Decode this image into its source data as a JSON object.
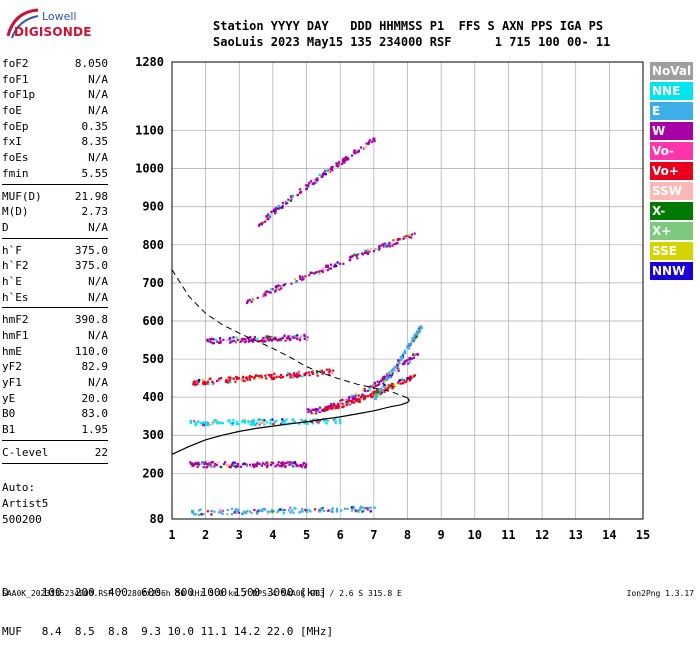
{
  "logo": {
    "line1": "Lowell",
    "line2": "DIGISONDE"
  },
  "header": {
    "line1": "Station YYYY DAY   DDD HHMMSS P1  FFS S AXN PPS IGA PS",
    "line2": "SaoLuis 2023 May15 135 234000 RSF      1 715 100 00- 11"
  },
  "params": {
    "group1": [
      {
        "k": "foF2",
        "v": "8.050"
      },
      {
        "k": "foF1",
        "v": "N/A"
      },
      {
        "k": "foF1p",
        "v": "N/A"
      },
      {
        "k": "foE",
        "v": "N/A"
      },
      {
        "k": "foEp",
        "v": "0.35"
      },
      {
        "k": "fxI",
        "v": "8.35"
      },
      {
        "k": "foEs",
        "v": "N/A"
      },
      {
        "k": "fmin",
        "v": "5.55"
      }
    ],
    "group2": [
      {
        "k": "MUF(D)",
        "v": "21.98"
      },
      {
        "k": "M(D)",
        "v": "2.73"
      },
      {
        "k": "D",
        "v": "N/A"
      }
    ],
    "group3": [
      {
        "k": "h`F",
        "v": "375.0"
      },
      {
        "k": "h`F2",
        "v": "375.0"
      },
      {
        "k": "h`E",
        "v": "N/A"
      },
      {
        "k": "h`Es",
        "v": "N/A"
      }
    ],
    "group4": [
      {
        "k": "hmF2",
        "v": "390.8"
      },
      {
        "k": "hmF1",
        "v": "N/A"
      },
      {
        "k": "hmE",
        "v": "110.0"
      },
      {
        "k": "yF2",
        "v": "82.9"
      },
      {
        "k": "yF1",
        "v": "N/A"
      },
      {
        "k": "yE",
        "v": "20.0"
      },
      {
        "k": "B0",
        "v": "83.0"
      },
      {
        "k": "B1",
        "v": "1.95"
      }
    ],
    "group5": [
      {
        "k": "C-level",
        "v": "22"
      }
    ]
  },
  "auto": {
    "line1": "Auto:",
    "line2": "Artist5",
    "line3": "500200"
  },
  "muf_table": {
    "d_line": "D     100  200  400  600  800 1000 1500 3000 [km]",
    "muf_line": "MUF   8.4  8.5  8.8  9.3 10.0 11.1 14.2 22.0 [MHz]"
  },
  "footer": {
    "left": "SAA0K_2023135234000.RSF / 280fx256h 50 kHz 5.0 km / DPS-4 SAA0K 903 / 2.6 S 315.8 E",
    "right": "Ion2Png 1.3.17"
  },
  "legend": [
    {
      "label": "NoVal",
      "color": "#9e9e9e"
    },
    {
      "label": "NNE",
      "color": "#00e5ee"
    },
    {
      "label": "E",
      "color": "#3daee9"
    },
    {
      "label": "W",
      "color": "#a700a7"
    },
    {
      "label": "Vo-",
      "color": "#ff33aa"
    },
    {
      "label": "Vo+",
      "color": "#e8001c"
    },
    {
      "label": "SSW",
      "color": "#ffb6b6"
    },
    {
      "label": "X-",
      "color": "#007a00"
    },
    {
      "label": "X+",
      "color": "#7dc97d"
    },
    {
      "label": "SSE",
      "color": "#d4d400"
    },
    {
      "label": "NNW",
      "color": "#1a00d6"
    }
  ],
  "chart_data": {
    "type": "scatter",
    "xlim": [
      1,
      15
    ],
    "ylim": [
      80,
      1280
    ],
    "x_ticks": [
      1,
      2,
      3,
      4,
      5,
      6,
      7,
      8,
      9,
      10,
      11,
      12,
      13,
      14,
      15
    ],
    "y_ticks": [
      80,
      200,
      300,
      400,
      500,
      600,
      700,
      800,
      900,
      1000,
      1100,
      1280
    ],
    "grid": true,
    "profile_line": {
      "x": [
        1.0,
        1.5,
        2.0,
        2.5,
        3.0,
        3.5,
        4.0,
        4.5,
        5.0,
        5.5,
        6.0,
        6.5,
        7.0,
        7.5,
        7.8,
        8.0,
        8.05,
        8.0
      ],
      "y": [
        250,
        270,
        288,
        300,
        310,
        318,
        324,
        330,
        335,
        342,
        348,
        356,
        364,
        375,
        380,
        386,
        392,
        398
      ]
    },
    "dashed_line": {
      "x": [
        1.0,
        1.5,
        2.0,
        2.5,
        3.0,
        3.5,
        4.0,
        4.5,
        5.0,
        5.5,
        6.0,
        6.5,
        7.0,
        7.5,
        8.0
      ],
      "y": [
        735,
        665,
        620,
        590,
        568,
        548,
        528,
        505,
        480,
        462,
        447,
        434,
        424,
        415,
        398
      ]
    },
    "echo_traces": [
      {
        "mode": "W",
        "x0": 5.0,
        "x1": 8.3,
        "y0": 365,
        "y1": 520,
        "curve": 1.6
      },
      {
        "mode": "Vo+",
        "x0": 5.5,
        "x1": 8.2,
        "y0": 375,
        "y1": 460,
        "curve": 1.4
      },
      {
        "mode": "E",
        "x0": 7.0,
        "x1": 8.4,
        "y0": 400,
        "y1": 590,
        "curve": 1.0
      },
      {
        "mode": "W",
        "x0": 3.2,
        "x1": 8.2,
        "y0": 650,
        "y1": 830,
        "curve": 0.9
      },
      {
        "mode": "W",
        "x0": 3.5,
        "x1": 7.0,
        "y0": 850,
        "y1": 1080,
        "curve": 0.9
      },
      {
        "mode": "NNE",
        "x0": 1.5,
        "x1": 6.0,
        "y0": 335,
        "y1": 340,
        "curve": 1.0
      },
      {
        "mode": "Vo+",
        "x0": 1.5,
        "x1": 5.8,
        "y0": 440,
        "y1": 470,
        "curve": 1.0
      },
      {
        "mode": "W",
        "x0": 1.5,
        "x1": 5.0,
        "y0": 225,
        "y1": 225,
        "curve": 1.0
      },
      {
        "mode": "E",
        "x0": 1.5,
        "x1": 7.0,
        "y0": 100,
        "y1": 110,
        "curve": 1.0
      },
      {
        "mode": "W",
        "x0": 2.0,
        "x1": 5.0,
        "y0": 550,
        "y1": 560,
        "curve": 1.0
      }
    ]
  }
}
